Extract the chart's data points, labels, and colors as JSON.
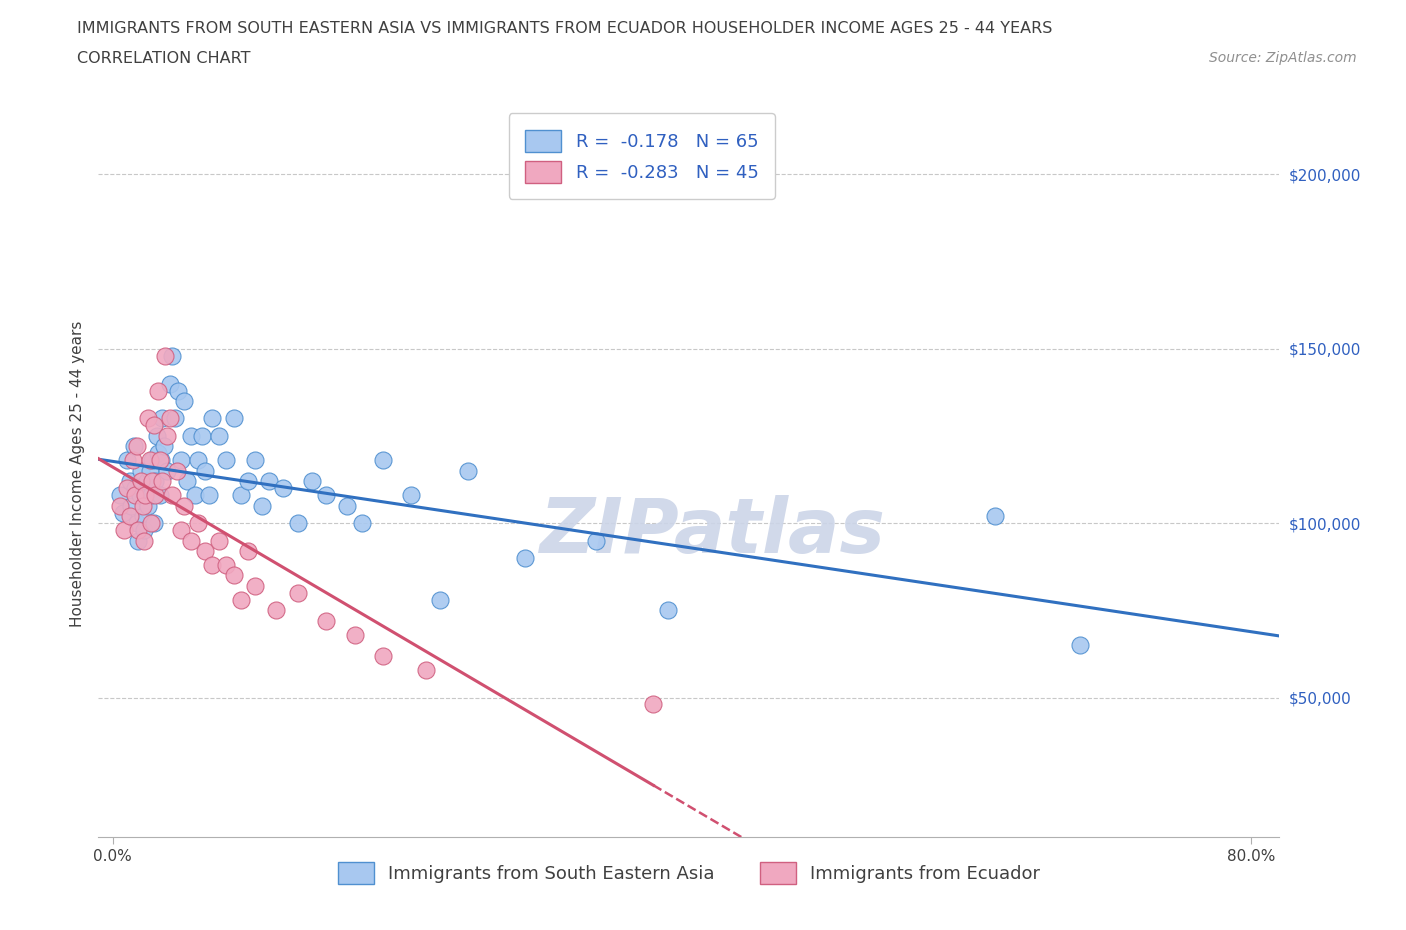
{
  "title_line1": "IMMIGRANTS FROM SOUTH EASTERN ASIA VS IMMIGRANTS FROM ECUADOR HOUSEHOLDER INCOME AGES 25 - 44 YEARS",
  "title_line2": "CORRELATION CHART",
  "source_text": "Source: ZipAtlas.com",
  "ylabel": "Householder Income Ages 25 - 44 years",
  "xtick_left": "0.0%",
  "xtick_right": "80.0%",
  "r_asia": -0.178,
  "n_asia": 65,
  "r_ecuador": -0.283,
  "n_ecuador": 45,
  "legend_label_asia": "Immigrants from South Eastern Asia",
  "legend_label_ecuador": "Immigrants from Ecuador",
  "color_asia": "#a8c8f0",
  "color_ecuador": "#f0a8c0",
  "edge_color_asia": "#5090d0",
  "edge_color_ecuador": "#d06080",
  "line_color_asia": "#3070c0",
  "line_color_ecuador": "#d05070",
  "watermark_text": "ZIPatlas",
  "watermark_color": "#ccd5e8",
  "ytick_labels": [
    "$50,000",
    "$100,000",
    "$150,000",
    "$200,000"
  ],
  "ytick_values": [
    50000,
    100000,
    150000,
    200000
  ],
  "ymin": 10000,
  "ymax": 218000,
  "xmin": -0.01,
  "xmax": 0.82,
  "xtick_positions": [
    0.0,
    0.8
  ],
  "asia_x": [
    0.005,
    0.007,
    0.01,
    0.012,
    0.013,
    0.015,
    0.016,
    0.017,
    0.018,
    0.019,
    0.02,
    0.021,
    0.022,
    0.023,
    0.024,
    0.025,
    0.026,
    0.027,
    0.028,
    0.029,
    0.03,
    0.031,
    0.032,
    0.033,
    0.034,
    0.035,
    0.036,
    0.038,
    0.04,
    0.042,
    0.044,
    0.046,
    0.048,
    0.05,
    0.052,
    0.055,
    0.058,
    0.06,
    0.063,
    0.065,
    0.068,
    0.07,
    0.075,
    0.08,
    0.085,
    0.09,
    0.095,
    0.1,
    0.105,
    0.11,
    0.12,
    0.13,
    0.14,
    0.15,
    0.165,
    0.175,
    0.19,
    0.21,
    0.23,
    0.25,
    0.29,
    0.34,
    0.39,
    0.62,
    0.68
  ],
  "asia_y": [
    108000,
    103000,
    118000,
    112000,
    105000,
    122000,
    110000,
    100000,
    95000,
    108000,
    115000,
    102000,
    98000,
    108000,
    112000,
    105000,
    115000,
    108000,
    118000,
    100000,
    112000,
    125000,
    120000,
    108000,
    118000,
    130000,
    122000,
    115000,
    140000,
    148000,
    130000,
    138000,
    118000,
    135000,
    112000,
    125000,
    108000,
    118000,
    125000,
    115000,
    108000,
    130000,
    125000,
    118000,
    130000,
    108000,
    112000,
    118000,
    105000,
    112000,
    110000,
    100000,
    112000,
    108000,
    105000,
    100000,
    118000,
    108000,
    78000,
    115000,
    90000,
    95000,
    75000,
    102000,
    65000
  ],
  "ecuador_x": [
    0.005,
    0.008,
    0.01,
    0.012,
    0.014,
    0.016,
    0.017,
    0.018,
    0.02,
    0.021,
    0.022,
    0.023,
    0.025,
    0.026,
    0.027,
    0.028,
    0.029,
    0.03,
    0.032,
    0.033,
    0.035,
    0.037,
    0.038,
    0.04,
    0.042,
    0.045,
    0.048,
    0.05,
    0.055,
    0.06,
    0.065,
    0.07,
    0.075,
    0.08,
    0.085,
    0.09,
    0.095,
    0.1,
    0.115,
    0.13,
    0.15,
    0.17,
    0.19,
    0.22,
    0.38
  ],
  "ecuador_y": [
    105000,
    98000,
    110000,
    102000,
    118000,
    108000,
    122000,
    98000,
    112000,
    105000,
    95000,
    108000,
    130000,
    118000,
    100000,
    112000,
    128000,
    108000,
    138000,
    118000,
    112000,
    148000,
    125000,
    130000,
    108000,
    115000,
    98000,
    105000,
    95000,
    100000,
    92000,
    88000,
    95000,
    88000,
    85000,
    78000,
    92000,
    82000,
    75000,
    80000,
    72000,
    68000,
    62000,
    58000,
    48000
  ],
  "title_fontsize": 11.5,
  "subtitle_fontsize": 11.5,
  "source_fontsize": 10,
  "axis_label_fontsize": 11,
  "tick_fontsize": 11,
  "legend_fontsize": 13,
  "watermark_fontsize": 55,
  "background_color": "#ffffff",
  "grid_color": "#c8c8c8",
  "text_color": "#404040",
  "legend_rn_color": "#3060c0"
}
